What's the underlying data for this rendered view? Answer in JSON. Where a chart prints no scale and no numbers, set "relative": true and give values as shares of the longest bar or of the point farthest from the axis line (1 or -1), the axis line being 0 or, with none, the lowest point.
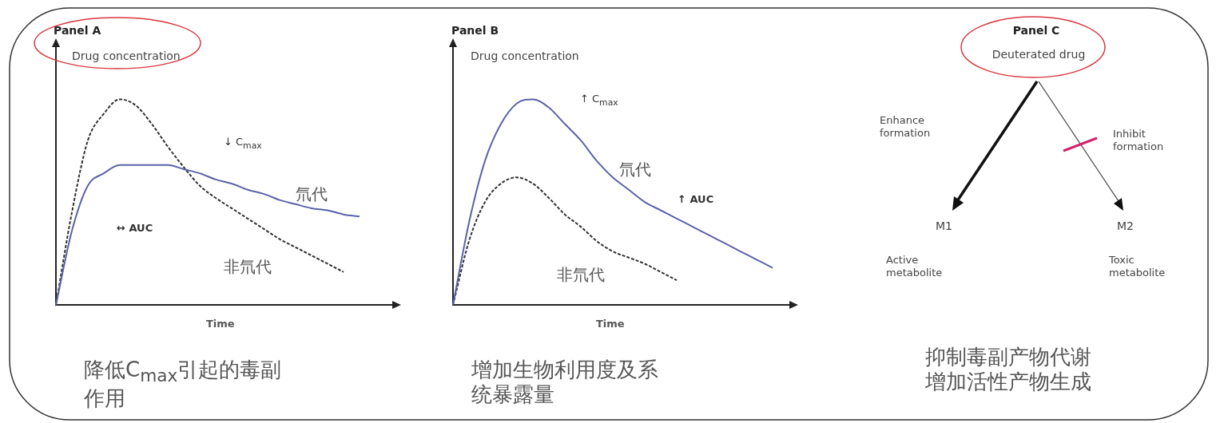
{
  "chart_data": [
    {
      "type": "line",
      "title": "Panel A",
      "ylabel": "Drug concentration",
      "xlabel": "Time",
      "relative": true,
      "tick_labels": false,
      "grid": false,
      "legend": false,
      "marker": "none",
      "categories": [
        null,
        null,
        null,
        null,
        null,
        null,
        null,
        null,
        null,
        null,
        null,
        null,
        null,
        null,
        null,
        null,
        null,
        null,
        null,
        null,
        null,
        null
      ],
      "series": [
        {
          "name": "氘代",
          "color": "#5b62a8",
          "line_style": "solid",
          "values": [
            0,
            0.36,
            0.58,
            0.64,
            0.68,
            0.68,
            0.68,
            0.68,
            0.66,
            0.64,
            0.61,
            0.59,
            0.56,
            0.54,
            0.51,
            0.49,
            0.47,
            0.46,
            0.44,
            0.43,
            null,
            null
          ]
        },
        {
          "name": "非氘代",
          "color": "#333333",
          "line_style": "dashed",
          "values": [
            0,
            0.45,
            0.8,
            0.93,
            1,
            0.97,
            0.88,
            0.77,
            0.67,
            0.58,
            0.52,
            0.47,
            0.42,
            0.37,
            0.32,
            0.28,
            0.24,
            0.2,
            0.16,
            null,
            null,
            null
          ]
        }
      ],
      "annotations": [
        "↓ C$_{max}$",
        "↔ AUC",
        "降低C$_{max}$引起的毒副作用"
      ]
    },
    {
      "type": "line",
      "title": "Panel B",
      "ylabel": "Drug concentration",
      "xlabel": "Time",
      "relative": true,
      "tick_labels": false,
      "grid": false,
      "legend": false,
      "marker": "none",
      "categories": [
        null,
        null,
        null,
        null,
        null,
        null,
        null,
        null,
        null,
        null,
        null,
        null,
        null,
        null,
        null,
        null,
        null,
        null,
        null,
        null,
        null,
        null
      ],
      "series": [
        {
          "name": "氘代",
          "color": "#5b62a8",
          "line_style": "solid",
          "values": [
            0,
            0.4,
            0.7,
            0.88,
            0.98,
            1,
            0.96,
            0.88,
            0.8,
            0.7,
            0.62,
            0.56,
            0.5,
            0.46,
            0.42,
            0.38,
            0.34,
            0.3,
            0.26,
            0.22,
            0.18,
            null
          ]
        },
        {
          "name": "非氘代",
          "color": "#333333",
          "line_style": "dashed",
          "values": [
            0,
            0.31,
            0.5,
            0.59,
            0.62,
            0.59,
            0.52,
            0.44,
            0.38,
            0.31,
            0.26,
            0.23,
            0.2,
            0.16,
            0.12,
            null,
            null,
            null,
            null,
            null,
            null,
            null
          ]
        }
      ],
      "annotations": [
        "↑ C$_{max}$",
        "↑ AUC",
        "增加生物利用度及系统暴露量"
      ]
    },
    {
      "type": "other",
      "title": "Panel C",
      "subtitle": "Deuterated drug",
      "annotations": [
        "Enhance formation",
        "Inhibit formation",
        "M1",
        "M2",
        "Active metabolite",
        "Toxic metabolite",
        "抑制毒副产物代谢增加活性产物生成"
      ]
    }
  ]
}
